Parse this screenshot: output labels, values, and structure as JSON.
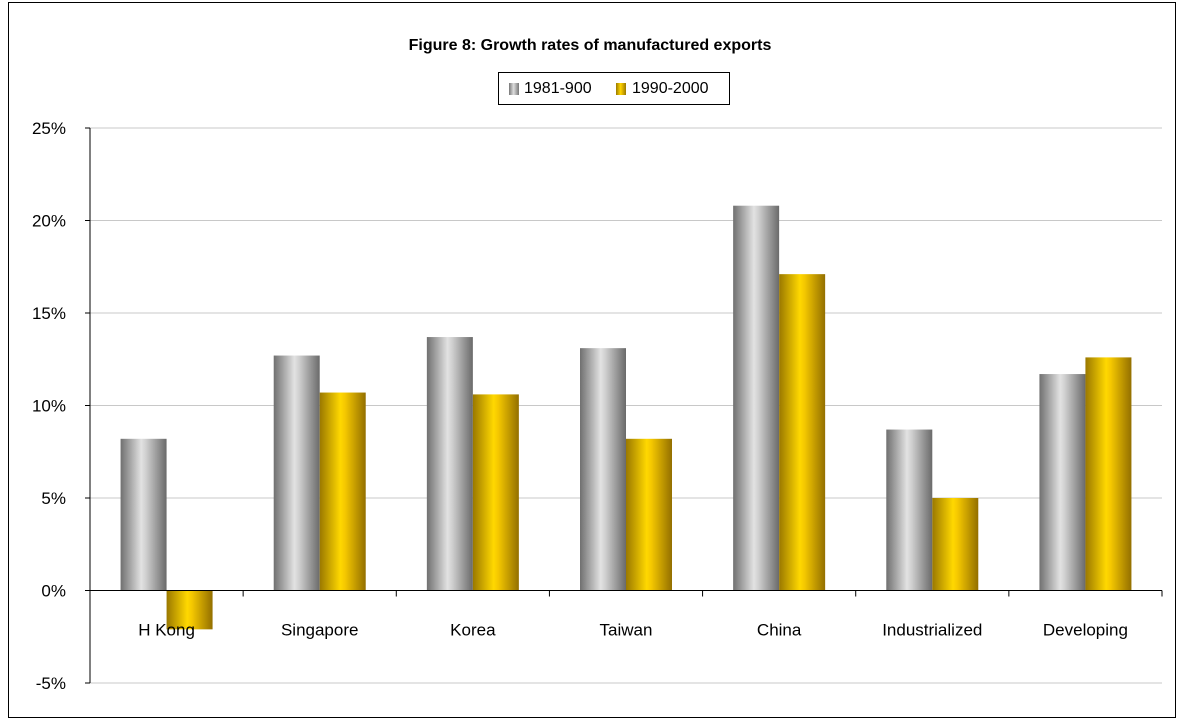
{
  "chart_data": {
    "type": "bar",
    "title": "Figure 8: Growth rates of manufactured exports",
    "categories": [
      "H Kong",
      "Singapore",
      "Korea",
      "Taiwan",
      "China",
      "Industrialized",
      "Developing"
    ],
    "series": [
      {
        "name": "1981-900",
        "values": [
          8.2,
          12.7,
          13.7,
          13.1,
          20.8,
          8.7,
          11.7
        ],
        "color": "#a6a6a6"
      },
      {
        "name": "1990-2000",
        "values": [
          -2.1,
          10.7,
          10.6,
          8.2,
          17.1,
          5.0,
          12.6
        ],
        "color": "#e6b800"
      }
    ],
    "y_tick_labels": [
      "25%",
      "20%",
      "15%",
      "10%",
      "5%",
      "0%",
      "-5%"
    ],
    "ylim": [
      -5,
      25
    ],
    "y_unit": "%",
    "grid": true,
    "legend_position": "top-center",
    "xlabel": "",
    "ylabel": ""
  }
}
